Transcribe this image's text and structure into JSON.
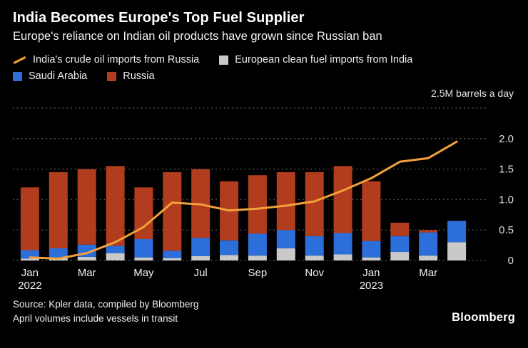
{
  "header": {
    "title": "India Becomes Europe's Top Fuel Supplier",
    "subtitle": "Europe's reliance on Indian oil products have grown since Russian ban"
  },
  "legend": {
    "items": [
      {
        "label": "India's crude oil imports from Russia",
        "swatch": "line",
        "color": "#f2a13a"
      },
      {
        "label": "European clean fuel imports from India",
        "swatch": "square",
        "color": "#c9c9c9"
      },
      {
        "label": "Saudi Arabia",
        "swatch": "square",
        "color": "#2c6fdb"
      },
      {
        "label": "Russia",
        "swatch": "square",
        "color": "#b13d1e"
      }
    ]
  },
  "chart_data": {
    "type": "bar",
    "subtype": "stacked-bars-with-line-overlay",
    "unit_label": "2.5M barrels a day",
    "ylim": [
      0,
      2.5
    ],
    "grid": "dotted-horizontal",
    "legend_position": "top-left",
    "yticks": [
      {
        "value": 2.0,
        "label": "2.0"
      },
      {
        "value": 1.5,
        "label": "1.5"
      },
      {
        "value": 1.0,
        "label": "1.0"
      },
      {
        "value": 0.5,
        "label": "0.5"
      },
      {
        "value": 0,
        "label": "0"
      }
    ],
    "x": [
      "Jan 2022",
      "Feb 2022",
      "Mar 2022",
      "Apr 2022",
      "May 2022",
      "Jun 2022",
      "Jul 2022",
      "Aug 2022",
      "Sep 2022",
      "Oct 2022",
      "Nov 2022",
      "Dec 2022",
      "Jan 2023",
      "Feb 2023",
      "Mar 2023",
      "Apr 2023"
    ],
    "x_tick_labels": [
      {
        "index": 0,
        "label": "Jan",
        "sub": "2022"
      },
      {
        "index": 2,
        "label": "Mar"
      },
      {
        "index": 4,
        "label": "May"
      },
      {
        "index": 6,
        "label": "Jul"
      },
      {
        "index": 8,
        "label": "Sep"
      },
      {
        "index": 10,
        "label": "Nov"
      },
      {
        "index": 12,
        "label": "Jan",
        "sub": "2023"
      },
      {
        "index": 14,
        "label": "Mar"
      }
    ],
    "bar_series": [
      {
        "name": "European clean fuel imports from India",
        "color": "#c9c9c9",
        "values": [
          0.03,
          0.04,
          0.06,
          0.12,
          0.05,
          0.04,
          0.07,
          0.09,
          0.08,
          0.2,
          0.08,
          0.1,
          0.05,
          0.14,
          0.08,
          0.3
        ]
      },
      {
        "name": "Saudi Arabia",
        "color": "#2c6fdb",
        "values": [
          0.14,
          0.16,
          0.2,
          0.12,
          0.3,
          0.12,
          0.3,
          0.24,
          0.36,
          0.3,
          0.32,
          0.35,
          0.27,
          0.26,
          0.38,
          0.35
        ]
      },
      {
        "name": "Russia",
        "color": "#b13d1e",
        "values": [
          1.03,
          1.25,
          1.24,
          1.31,
          0.85,
          1.29,
          1.13,
          0.97,
          0.96,
          0.95,
          1.05,
          1.1,
          0.98,
          0.22,
          0.04,
          0.0
        ]
      }
    ],
    "line_series": {
      "name": "India's crude oil imports from Russia",
      "color": "#f2a13a",
      "values": [
        0.05,
        0.03,
        0.12,
        0.3,
        0.55,
        0.95,
        0.92,
        0.82,
        0.85,
        0.9,
        0.97,
        1.15,
        1.35,
        1.62,
        1.68,
        1.95
      ]
    }
  },
  "footer": {
    "source_line1": "Source: Kpler data, compiled by Bloomberg",
    "source_line2": "April volumes include vessels in transit",
    "brand": "Bloomberg"
  }
}
